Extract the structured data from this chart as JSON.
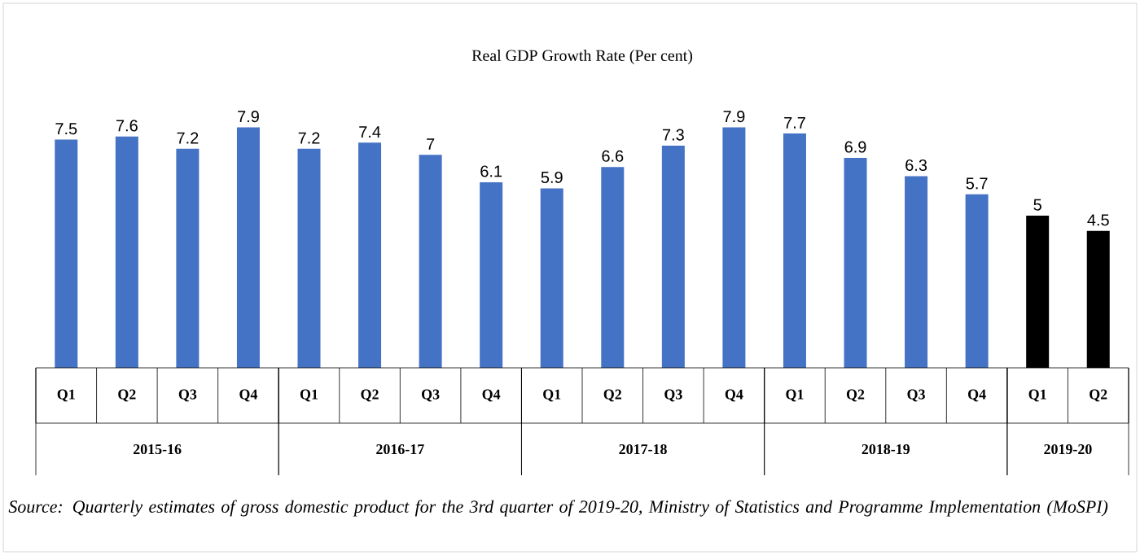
{
  "chart_data": {
    "type": "bar",
    "title": "Real GDP Growth Rate (Per cent)",
    "categories": [
      "Q1",
      "Q2",
      "Q3",
      "Q4",
      "Q1",
      "Q2",
      "Q3",
      "Q4",
      "Q1",
      "Q2",
      "Q3",
      "Q4",
      "Q1",
      "Q2",
      "Q3",
      "Q4",
      "Q1",
      "Q2"
    ],
    "values": [
      7.5,
      7.6,
      7.2,
      7.9,
      7.2,
      7.4,
      7,
      6.1,
      5.9,
      6.6,
      7.3,
      7.9,
      7.7,
      6.9,
      6.3,
      5.7,
      5,
      4.5
    ],
    "colors": [
      "#4472c4",
      "#4472c4",
      "#4472c4",
      "#4472c4",
      "#4472c4",
      "#4472c4",
      "#4472c4",
      "#4472c4",
      "#4472c4",
      "#4472c4",
      "#4472c4",
      "#4472c4",
      "#4472c4",
      "#4472c4",
      "#4472c4",
      "#4472c4",
      "#000000",
      "#000000"
    ],
    "data_labels": true,
    "annotations": [
      "2015-16",
      "2016-17",
      "2017-18",
      "2018-19",
      "2019-20",
      "Source: Quarterly estimates of gross domestic product for the 3rd quarter of 2019-20, Ministry of Statistics and Programme Implementation (MoSPI)"
    ]
  }
}
